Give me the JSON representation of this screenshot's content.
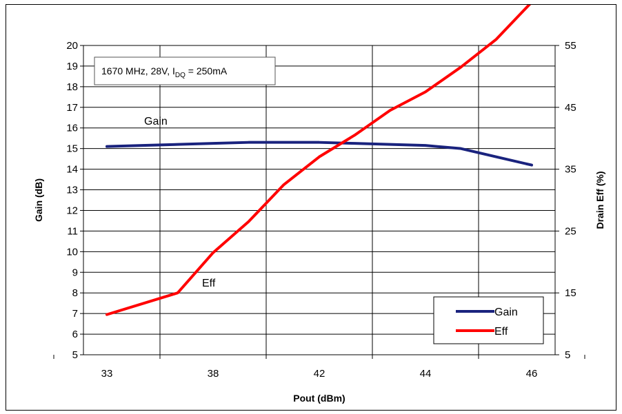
{
  "chart_data": {
    "type": "line",
    "xlabel": "Pout (dBm)",
    "ylabel": "Gain (dB)",
    "y2label": "Drain Eff (%)",
    "x_categories": [
      "33",
      "38",
      "42",
      "44",
      "46"
    ],
    "ylim": [
      5,
      20
    ],
    "y2lim": [
      5,
      55
    ],
    "yticks": [
      "5",
      "6",
      "7",
      "8",
      "9",
      "10",
      "11",
      "12",
      "13",
      "14",
      "15",
      "16",
      "17",
      "18",
      "19",
      "20"
    ],
    "y2ticks": [
      "5",
      "15",
      "25",
      "35",
      "45",
      "55"
    ],
    "grid": true,
    "note": {
      "prefix": "1670 MHz, 28V, I",
      "subscript": "DQ",
      "suffix": " = 250mA"
    },
    "legend_position": "bottom-right",
    "series": [
      {
        "name": "Gain",
        "axis": "left",
        "color": "#1a237e",
        "x": [
          0,
          0.5,
          1,
          1.5,
          2,
          2.5,
          3,
          3.5,
          4,
          4.5,
          5,
          5.5,
          6
        ],
        "values": [
          15.1,
          15.15,
          15.2,
          15.25,
          15.3,
          15.3,
          15.3,
          15.25,
          15.2,
          15.15,
          15.0,
          14.6,
          14.2
        ]
      },
      {
        "name": "Eff",
        "axis": "right",
        "color": "#ff0000",
        "x": [
          0,
          1,
          1.5,
          2,
          2.5,
          3,
          3.5,
          4,
          4.5,
          5,
          5.5,
          6
        ],
        "values": [
          11.5,
          15.0,
          21.5,
          26.5,
          32.5,
          37.0,
          40.5,
          44.5,
          47.5,
          51.5,
          56.0,
          62.0
        ]
      }
    ],
    "annotations": [
      {
        "text": "Gain"
      },
      {
        "text": "Eff"
      }
    ]
  }
}
